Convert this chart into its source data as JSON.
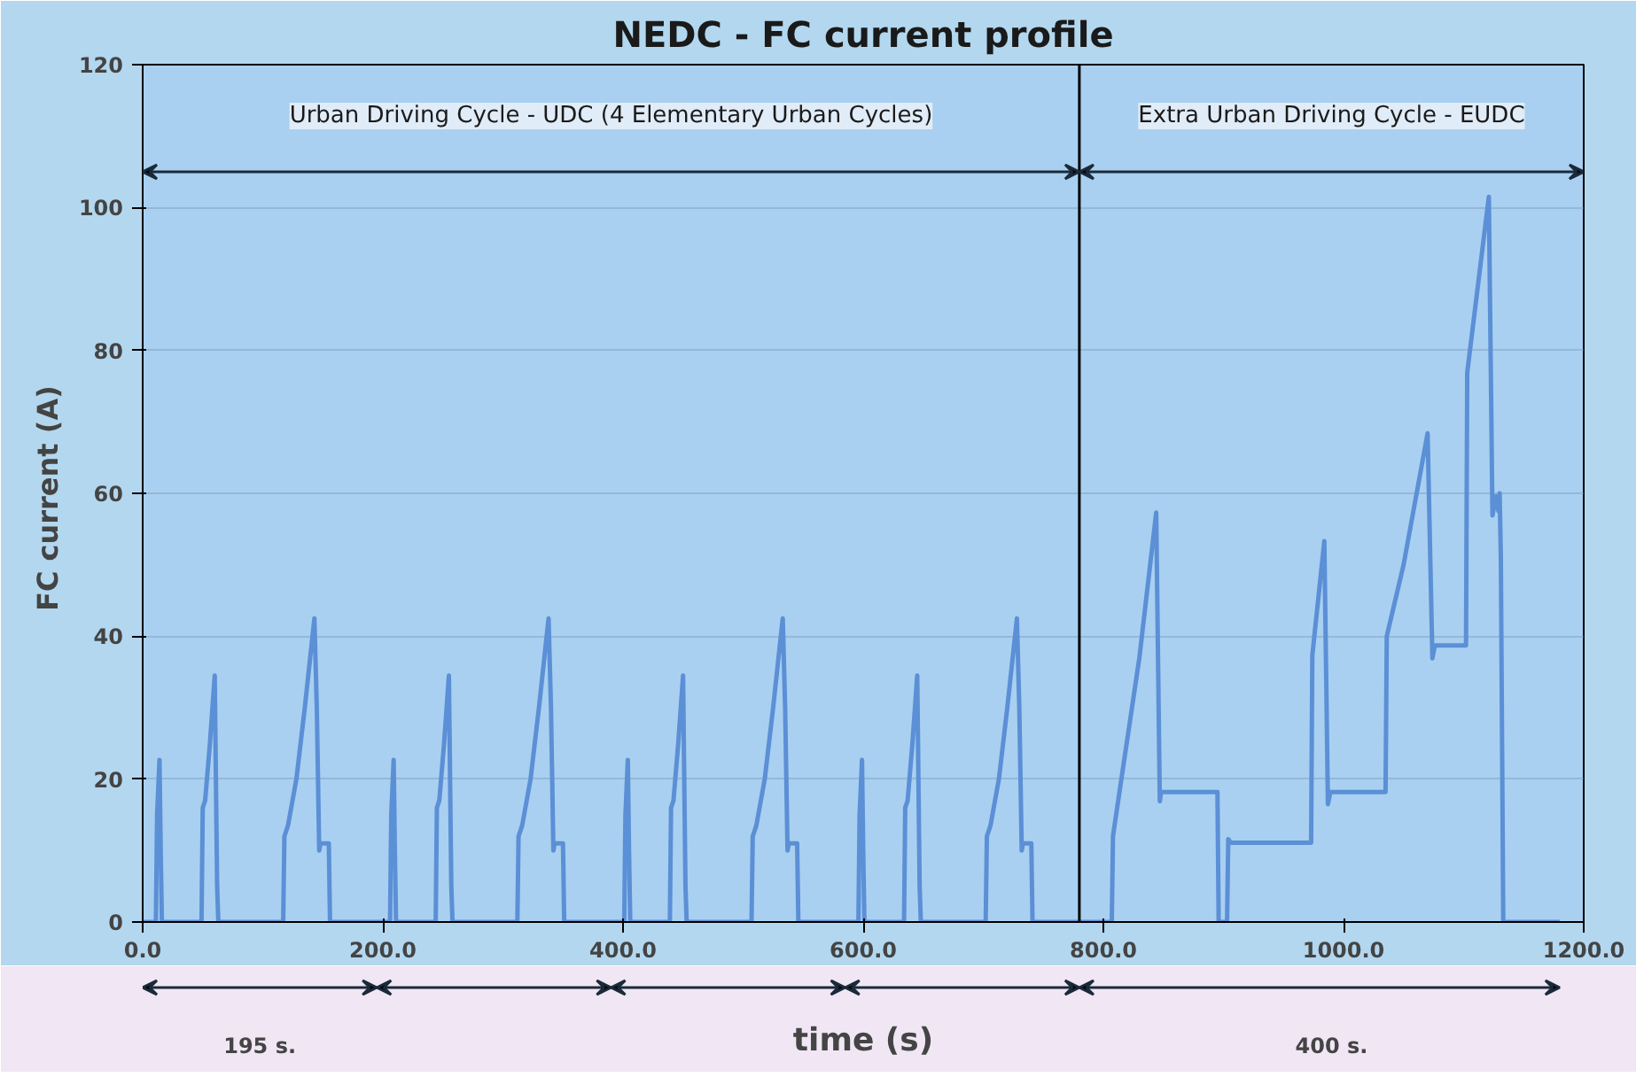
{
  "chart_data": {
    "type": "line",
    "title": "NEDC - FC current profile",
    "xlabel": "time (s)",
    "ylabel": "FC  current (A)",
    "xlim": [
      0,
      1200
    ],
    "ylim": [
      0,
      120
    ],
    "xticks": [
      {
        "value": 0,
        "label": "0.0"
      },
      {
        "value": 200,
        "label": "200.0"
      },
      {
        "value": 400,
        "label": "400.0"
      },
      {
        "value": 600,
        "label": "600.0"
      },
      {
        "value": 800,
        "label": "800.0"
      },
      {
        "value": 1000,
        "label": "1000.0"
      },
      {
        "value": 1200,
        "label": "1200.0"
      }
    ],
    "yticks": [
      0,
      20,
      40,
      60,
      80,
      100,
      120
    ],
    "grid": "y",
    "marker": "none",
    "line_style": "solid",
    "ref_lines": [
      {
        "axis": "x",
        "value": 780,
        "label": null,
        "color": "#000000"
      }
    ],
    "annotations": [
      "Urban Driving Cycle - UDC (4 Elementary Urban Cycles)",
      "Extra Urban Driving Cycle - EUDC",
      "195 s.",
      "400 s."
    ],
    "series": [
      {
        "color": "#5b8fd6",
        "x": [
          0,
          11,
          12,
          14,
          15,
          16,
          49,
          50,
          52,
          56,
          60,
          62,
          63,
          117,
          118,
          121,
          128,
          135,
          143,
          145,
          147,
          148,
          155,
          156,
          206,
          207,
          209,
          210,
          211,
          244,
          245,
          247,
          251,
          255,
          257,
          258,
          312,
          313,
          316,
          323,
          330,
          338,
          340,
          342,
          343,
          350,
          351,
          401,
          402,
          404,
          405,
          406,
          439,
          440,
          442,
          446,
          450,
          452,
          453,
          507,
          508,
          511,
          518,
          525,
          533,
          535,
          537,
          538,
          545,
          546,
          596,
          597,
          599,
          600,
          601,
          634,
          635,
          637,
          641,
          645,
          647,
          648,
          702,
          703,
          706,
          713,
          720,
          728,
          730,
          732,
          733,
          740,
          741,
          807,
          808,
          815,
          830,
          844,
          847,
          848,
          895,
          896,
          903,
          904,
          906,
          973,
          974,
          984,
          987,
          989,
          1035,
          1036,
          1050,
          1070,
          1074,
          1076,
          1102,
          1103,
          1121,
          1124,
          1127,
          1129,
          1130,
          1131,
          1133,
          1180
        ],
        "values": [
          0,
          0,
          15,
          22.7,
          10,
          0,
          0,
          16,
          17,
          25,
          34.5,
          5,
          0,
          0,
          12,
          13.5,
          20,
          30,
          42.5,
          30,
          10,
          11,
          11,
          0,
          0,
          15,
          22.7,
          10,
          0,
          0,
          16,
          17,
          25,
          34.5,
          5,
          0,
          0,
          12,
          13.5,
          20,
          30,
          42.5,
          30,
          10,
          11,
          11,
          0,
          0,
          15,
          22.7,
          10,
          0,
          0,
          16,
          17,
          25,
          34.5,
          5,
          0,
          0,
          12,
          13.5,
          20,
          30,
          42.5,
          30,
          10,
          11,
          11,
          0,
          0,
          15,
          22.7,
          10,
          0,
          0,
          16,
          17,
          25,
          34.5,
          5,
          0,
          0,
          12,
          13.5,
          20,
          30,
          42.5,
          30,
          10,
          11,
          11,
          0,
          0,
          12,
          20,
          37,
          57.3,
          16.9,
          18.2,
          18.2,
          0,
          0,
          11.6,
          11.1,
          11.1,
          37.3,
          53.3,
          16.5,
          18.2,
          18.2,
          40,
          50,
          68.4,
          36.9,
          38.7,
          38.7,
          76.9,
          101.5,
          56.9,
          59.6,
          57.5,
          60,
          51,
          0,
          0
        ]
      }
    ]
  }
}
